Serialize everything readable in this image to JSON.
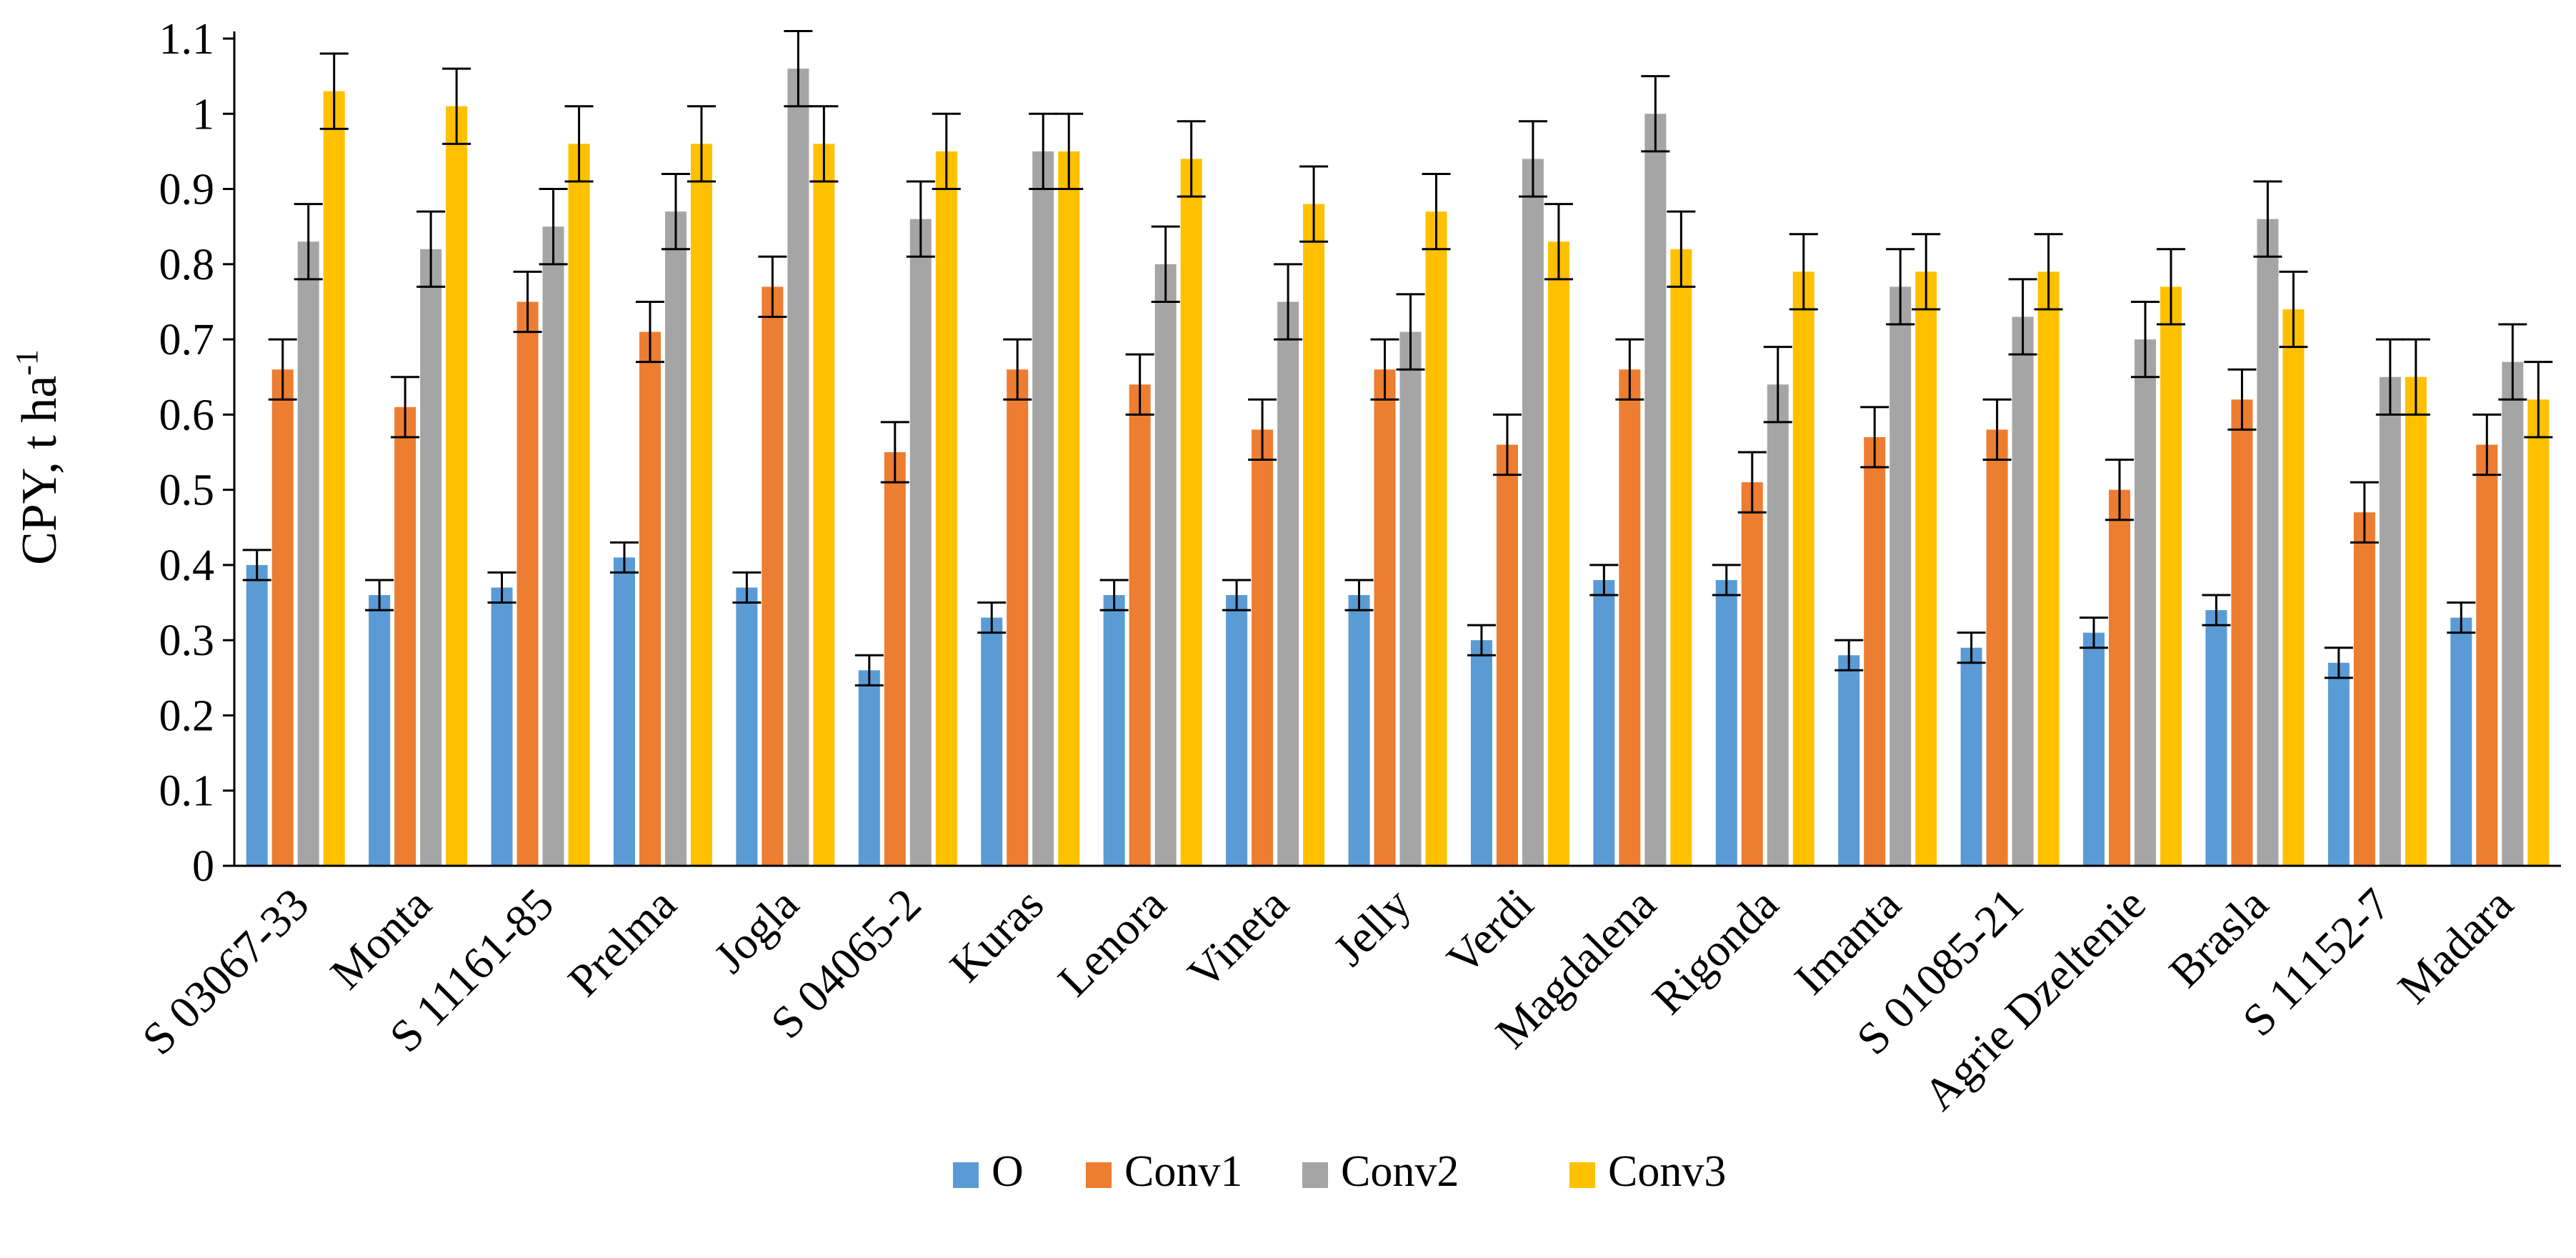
{
  "chart_data": {
    "type": "bar",
    "ylabel": "CPY, t ha",
    "ylabel_superscript": "-1",
    "ylim": [
      0,
      1.1
    ],
    "yticks": [
      0,
      0.1,
      0.2,
      0.3,
      0.4,
      0.5,
      0.6,
      0.7,
      0.8,
      0.9,
      1,
      1.1
    ],
    "ytick_labels": [
      "0",
      "0.1",
      "0.2",
      "0.3",
      "0.4",
      "0.5",
      "0.6",
      "0.7",
      "0.8",
      "0.9",
      "1",
      "1.1"
    ],
    "grid": false,
    "legend_position": "bottom",
    "categories": [
      "S 03067-33",
      "Monta",
      "S 11161-85",
      "Prelma",
      "Jogla",
      "S 04065-2",
      "Kuras",
      "Lenora",
      "Vineta",
      "Jelly",
      "Verdi",
      "Magdalena",
      "Rigonda",
      "Imanta",
      "S 01085-21",
      "Agrie Dzeltenie",
      "Brasla",
      "S 11152-7",
      "Madara"
    ],
    "series": [
      {
        "name": "O",
        "color": "#5B9BD5",
        "values": [
          0.4,
          0.36,
          0.37,
          0.41,
          0.37,
          0.26,
          0.33,
          0.36,
          0.36,
          0.36,
          0.3,
          0.38,
          0.38,
          0.28,
          0.29,
          0.31,
          0.34,
          0.27,
          0.33
        ],
        "errors": [
          0.02,
          0.02,
          0.02,
          0.02,
          0.02,
          0.02,
          0.02,
          0.02,
          0.02,
          0.02,
          0.02,
          0.02,
          0.02,
          0.02,
          0.02,
          0.02,
          0.02,
          0.02,
          0.02
        ]
      },
      {
        "name": "Conv1",
        "color": "#ED7D31",
        "values": [
          0.66,
          0.61,
          0.75,
          0.71,
          0.77,
          0.55,
          0.66,
          0.64,
          0.58,
          0.66,
          0.56,
          0.66,
          0.51,
          0.57,
          0.58,
          0.5,
          0.62,
          0.47,
          0.56
        ],
        "errors": [
          0.04,
          0.04,
          0.04,
          0.04,
          0.04,
          0.04,
          0.04,
          0.04,
          0.04,
          0.04,
          0.04,
          0.04,
          0.04,
          0.04,
          0.04,
          0.04,
          0.04,
          0.04,
          0.04
        ]
      },
      {
        "name": "Conv2",
        "color": "#A5A5A5",
        "values": [
          0.83,
          0.82,
          0.85,
          0.87,
          1.06,
          0.86,
          0.95,
          0.8,
          0.75,
          0.71,
          0.94,
          1.0,
          0.64,
          0.77,
          0.73,
          0.7,
          0.86,
          0.65,
          0.67
        ],
        "errors": [
          0.05,
          0.05,
          0.05,
          0.05,
          0.05,
          0.05,
          0.05,
          0.05,
          0.05,
          0.05,
          0.05,
          0.05,
          0.05,
          0.05,
          0.05,
          0.05,
          0.05,
          0.05,
          0.05
        ]
      },
      {
        "name": "Conv3",
        "color": "#FFC000",
        "values": [
          1.03,
          1.01,
          0.96,
          0.96,
          0.96,
          0.95,
          0.95,
          0.94,
          0.88,
          0.87,
          0.83,
          0.82,
          0.79,
          0.79,
          0.79,
          0.77,
          0.74,
          0.65,
          0.62
        ],
        "errors": [
          0.05,
          0.05,
          0.05,
          0.05,
          0.05,
          0.05,
          0.05,
          0.05,
          0.05,
          0.05,
          0.05,
          0.05,
          0.05,
          0.05,
          0.05,
          0.05,
          0.05,
          0.05,
          0.05
        ]
      }
    ]
  }
}
